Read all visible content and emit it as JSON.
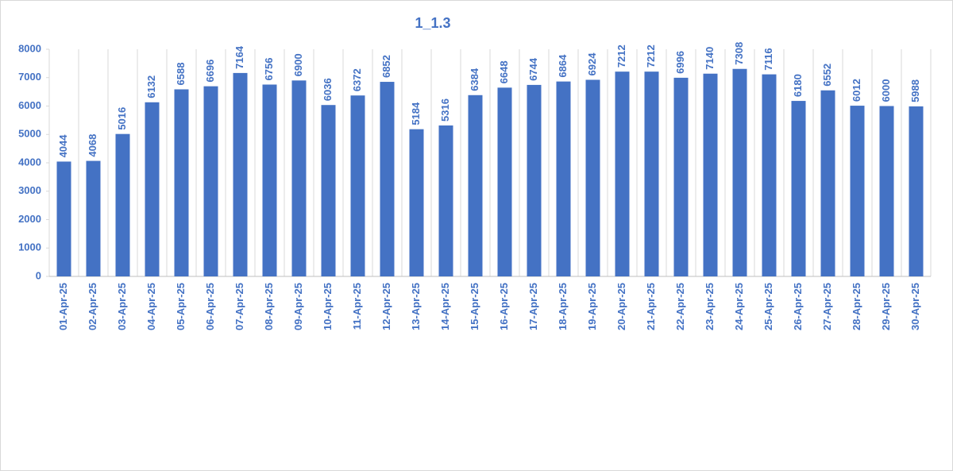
{
  "chart_data": {
    "type": "bar",
    "title": "1_1.3",
    "categories": [
      "01-Apr-25",
      "02-Apr-25",
      "03-Apr-25",
      "04-Apr-25",
      "05-Apr-25",
      "06-Apr-25",
      "07-Apr-25",
      "08-Apr-25",
      "09-Apr-25",
      "10-Apr-25",
      "11-Apr-25",
      "12-Apr-25",
      "13-Apr-25",
      "14-Apr-25",
      "15-Apr-25",
      "16-Apr-25",
      "17-Apr-25",
      "18-Apr-25",
      "19-Apr-25",
      "20-Apr-25",
      "21-Apr-25",
      "22-Apr-25",
      "23-Apr-25",
      "24-Apr-25",
      "25-Apr-25",
      "26-Apr-25",
      "27-Apr-25",
      "28-Apr-25",
      "29-Apr-25",
      "30-Apr-25"
    ],
    "values": [
      4044,
      4068,
      5016,
      6132,
      6588,
      6696,
      7164,
      6756,
      6900,
      6036,
      6372,
      6852,
      5184,
      5316,
      6384,
      6648,
      6744,
      6864,
      6924,
      7212,
      7212,
      6996,
      7140,
      7308,
      7116,
      6180,
      6552,
      6012,
      6000,
      5988
    ],
    "color": "#4472c4",
    "ylim": [
      0,
      8000
    ],
    "yticks": [
      0,
      1000,
      2000,
      3000,
      4000,
      5000,
      6000,
      7000,
      8000
    ],
    "grid": true
  }
}
